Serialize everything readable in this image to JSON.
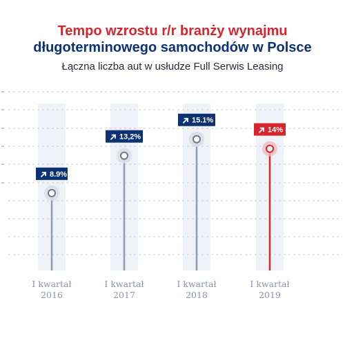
{
  "header": {
    "title_line_1": "Tempo wzrostu r/r branży wynajmu",
    "title_line_2": "długoterminowego samochodów w Polsce",
    "subtitle": "Łączna liczba aut w usłudze Full Serwis Leasing"
  },
  "colors": {
    "title_primary": "#d7252d",
    "title_secondary": "#0d3273",
    "badge_default": "#0d3273",
    "badge_highlight": "#d7252d",
    "column_band": "#eef1f6",
    "stem_default": "#8e9cb3",
    "stem_highlight": "#d7252d",
    "gridline": "#c9ced6"
  },
  "chart_data": {
    "type": "lollipop",
    "title": "Tempo wzrostu r/r branży wynajmu długoterminowego samochodów w Polsce",
    "subtitle": "Łączna liczba aut w usłudze Full Serwis Leasing",
    "categories": [
      [
        "I kwartał",
        "2016"
      ],
      [
        "I kwartał",
        "2017"
      ],
      [
        "I kwartał",
        "2018"
      ],
      [
        "I kwartał",
        "2019"
      ]
    ],
    "values": [
      8.9,
      13.2,
      15.1,
      14.0
    ],
    "value_labels": [
      "8.9%",
      "13,2%",
      "15.1%",
      "14%"
    ],
    "highlight_index": 3,
    "badge_icon": "arrow-up-right-icon",
    "ylim": [
      0,
      20
    ],
    "grid": true,
    "legend": "none"
  }
}
